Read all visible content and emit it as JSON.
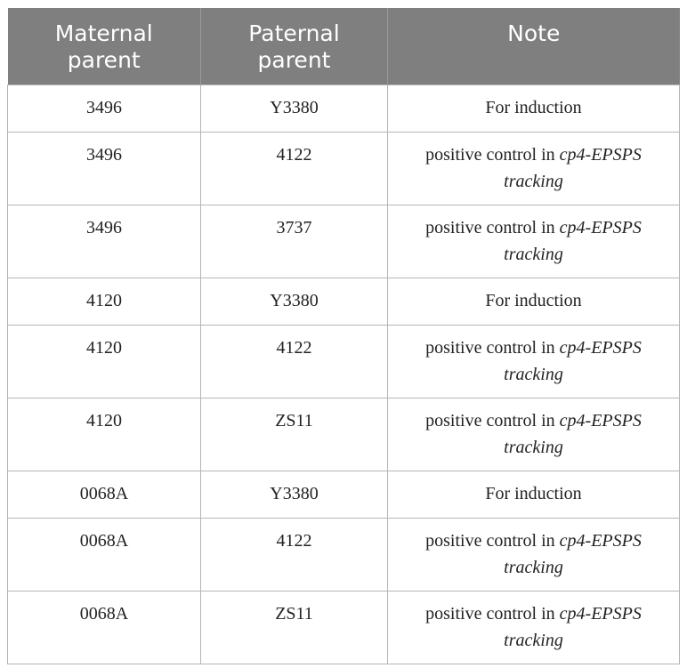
{
  "table": {
    "headers": [
      "Maternal parent",
      "Paternal parent",
      "Note"
    ],
    "rows": [
      {
        "maternal": "3496",
        "paternal": "Y3380",
        "note": "For induction",
        "note_pre": "",
        "note_gene": "",
        "note_post": ""
      },
      {
        "maternal": "3496",
        "paternal": "4122",
        "note": "",
        "note_pre": "positive control in ",
        "note_gene": "cp4-EPSPS",
        "note_post": " tracking"
      },
      {
        "maternal": "3496",
        "paternal": "3737",
        "note": "",
        "note_pre": "positive control in ",
        "note_gene": "cp4-EPSPS",
        "note_post": " tracking"
      },
      {
        "maternal": "4120",
        "paternal": "Y3380",
        "note": "For induction",
        "note_pre": "",
        "note_gene": "",
        "note_post": ""
      },
      {
        "maternal": "4120",
        "paternal": "4122",
        "note": "",
        "note_pre": "positive control in ",
        "note_gene": "cp4-EPSPS",
        "note_post": " tracking"
      },
      {
        "maternal": "4120",
        "paternal": "ZS11",
        "note": "",
        "note_pre": "positive control in ",
        "note_gene": "cp4-EPSPS",
        "note_post": " tracking"
      },
      {
        "maternal": "0068A",
        "paternal": "Y3380",
        "note": "For induction",
        "note_pre": "",
        "note_gene": "",
        "note_post": ""
      },
      {
        "maternal": "0068A",
        "paternal": "4122",
        "note": "",
        "note_pre": "positive control in ",
        "note_gene": "cp4-EPSPS",
        "note_post": " tracking"
      },
      {
        "maternal": "0068A",
        "paternal": "ZS11",
        "note": "",
        "note_pre": "positive control in ",
        "note_gene": "cp4-EPSPS",
        "note_post": " tracking"
      }
    ]
  },
  "colors": {
    "header_bg": "#7f7f7f",
    "header_text": "#ffffff",
    "border": "#b5b5b5"
  }
}
